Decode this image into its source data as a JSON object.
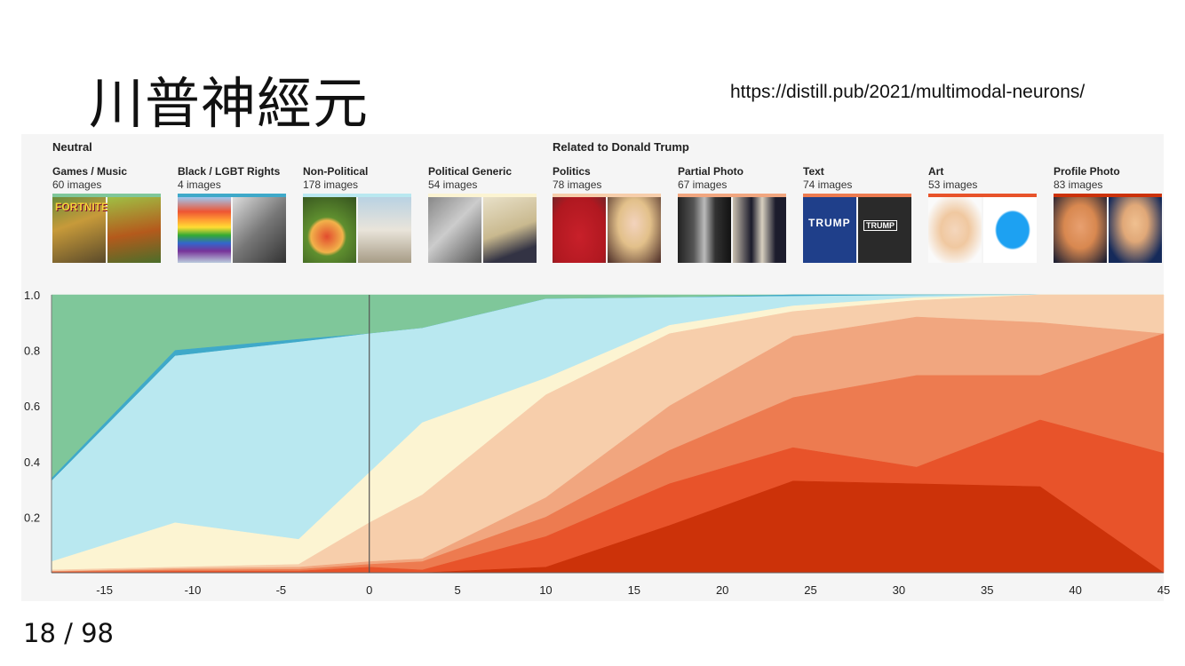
{
  "slide": {
    "title": "川普神經元",
    "url": "https://distill.pub/2021/multimodal-neurons/",
    "page_number": "18 / 98"
  },
  "groups": {
    "neutral": "Neutral",
    "trump": "Related to Donald Trump"
  },
  "categories": [
    {
      "name": "Games / Music",
      "count": "60 images",
      "color": "#7fc79a",
      "thumb_text": "FORTNITE"
    },
    {
      "name": "Black / LGBT Rights",
      "count": "4 images",
      "color": "#3fa9c9",
      "thumb_text": ""
    },
    {
      "name": "Non-Political",
      "count": "178 images",
      "color": "#b9e8f0",
      "thumb_text": ""
    },
    {
      "name": "Political Generic",
      "count": "54 images",
      "color": "#fcf4d2",
      "thumb_text": ""
    },
    {
      "name": "Politics",
      "count": "78 images",
      "color": "#f7ceab",
      "thumb_text": ""
    },
    {
      "name": "Partial Photo",
      "count": "67 images",
      "color": "#f1a67f",
      "thumb_text": ""
    },
    {
      "name": "Text",
      "count": "74 images",
      "color": "#ed7b50",
      "thumb_text": "TRUMP"
    },
    {
      "name": "Art",
      "count": "53 images",
      "color": "#e8532a",
      "thumb_text": ""
    },
    {
      "name": "Profile Photo",
      "count": "83 images",
      "color": "#cc3209",
      "thumb_text": ""
    }
  ],
  "chart_data": {
    "type": "area",
    "stacked": true,
    "x": [
      -18,
      -11,
      -4,
      0,
      3,
      10,
      17,
      24,
      31,
      38,
      45
    ],
    "xticks": [
      -15,
      -10,
      -5,
      0,
      5,
      10,
      15,
      20,
      25,
      30,
      35,
      40,
      45
    ],
    "yticks": [
      0.2,
      0.4,
      0.6,
      0.8,
      1.0
    ],
    "xlim": [
      -18,
      45
    ],
    "ylim": [
      0,
      1
    ],
    "vline_x": 0,
    "series_order_top_to_bottom": [
      "Games / Music",
      "Black / LGBT Rights",
      "Non-Political",
      "Political Generic",
      "Politics",
      "Partial Photo",
      "Text",
      "Art",
      "Profile Photo"
    ],
    "boundaries": [
      [
        1.0,
        1.0,
        1.0,
        1.0,
        1.0,
        1.0,
        1.0,
        1.0,
        1.0,
        1.0,
        1.0
      ],
      [
        0.34,
        0.8,
        0.84,
        0.86,
        0.88,
        0.985,
        0.99,
        1.0,
        1.0,
        1.0,
        1.0
      ],
      [
        0.33,
        0.78,
        0.83,
        0.86,
        0.88,
        0.985,
        0.99,
        0.995,
        0.998,
        1.0,
        1.0
      ],
      [
        0.04,
        0.18,
        0.12,
        0.36,
        0.54,
        0.7,
        0.89,
        0.96,
        0.99,
        1.0,
        1.0
      ],
      [
        0.01,
        0.02,
        0.03,
        0.18,
        0.28,
        0.64,
        0.86,
        0.94,
        0.98,
        1.0,
        1.0
      ],
      [
        0.005,
        0.015,
        0.02,
        0.04,
        0.05,
        0.27,
        0.6,
        0.85,
        0.92,
        0.9,
        0.86
      ],
      [
        0.004,
        0.01,
        0.012,
        0.03,
        0.04,
        0.2,
        0.44,
        0.63,
        0.71,
        0.71,
        0.86
      ],
      [
        0.002,
        0.005,
        0.006,
        0.02,
        0.01,
        0.13,
        0.32,
        0.45,
        0.38,
        0.55,
        0.43
      ],
      [
        0.0,
        0.0,
        0.0,
        0.0,
        0.0,
        0.02,
        0.17,
        0.33,
        0.32,
        0.31,
        0.0
      ]
    ]
  }
}
